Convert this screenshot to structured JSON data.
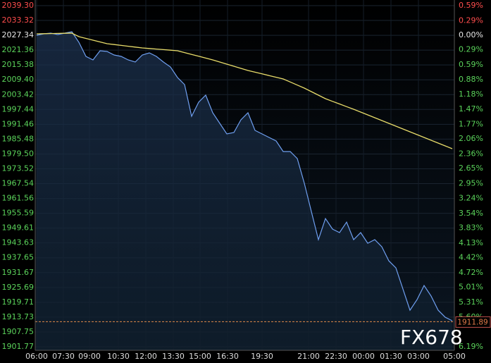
{
  "chart_data": {
    "type": "line",
    "watermark": "FX678",
    "xticks": [
      "06:00",
      "07:30",
      "09:00",
      "10:30",
      "12:00",
      "13:30",
      "15:00",
      "16:30",
      "19:30",
      "21:00",
      "22:30",
      "00:00",
      "01:30",
      "03:00",
      "05:00"
    ],
    "ylim": [
      1900.35,
      2041.57
    ],
    "yticks": [
      {
        "value": 2039.3,
        "label": "2039.30"
      },
      2033.32,
      2027.34,
      2021.36,
      2015.38,
      {
        "value": 2009.4,
        "label": "2009.40"
      },
      2003.42,
      1997.44,
      1991.46,
      1985.48,
      {
        "value": 1979.5,
        "label": "1979.50"
      },
      1973.52,
      1967.54,
      1961.56,
      1955.59,
      1949.61,
      1943.63,
      1937.65,
      1931.67,
      1925.69,
      1919.71,
      1913.73,
      1907.75,
      1901.77
    ],
    "y2lim": [
      -6.26,
      0.7
    ],
    "y2ticks": [
      {
        "value": 0.59,
        "label": "0.59%"
      },
      {
        "value": 0.29,
        "label": "0.29%"
      },
      {
        "value": 0,
        "label": "0.00%"
      },
      {
        "value": -0.29,
        "label": "0.29%"
      },
      {
        "value": -0.59,
        "label": "0.59%"
      },
      {
        "value": -0.88,
        "label": "0.88%"
      },
      {
        "value": -1.18,
        "label": "1.18%"
      },
      {
        "value": -1.47,
        "label": "1.47%"
      },
      {
        "value": -1.77,
        "label": "1.77%"
      },
      {
        "value": -2.06,
        "label": "2.06%"
      },
      {
        "value": -2.36,
        "label": "2.36%"
      },
      {
        "value": -2.65,
        "label": "2.65%"
      },
      {
        "value": -2.95,
        "label": "2.95%"
      },
      {
        "value": -3.24,
        "label": "3.24%"
      },
      {
        "value": -3.54,
        "label": "3.54%"
      },
      {
        "value": -3.83,
        "label": "3.83%"
      },
      {
        "value": -4.13,
        "label": "4.13%"
      },
      {
        "value": -4.42,
        "label": "4.42%"
      },
      {
        "value": -4.72,
        "label": "4.72%"
      },
      {
        "value": -5.01,
        "label": "5.01%"
      },
      {
        "value": -5.31,
        "label": "5.31%"
      },
      {
        "value": -5.6,
        "label": "5.60%"
      },
      {
        "value": -6.19,
        "label": "6.19%"
      }
    ],
    "grid": true,
    "last_price": 1911.89,
    "series": [
      {
        "color": "#6f9ff0",
        "values": [
          2027.36,
          2027.93,
          2028.22,
          2027.65,
          2028.22,
          2028.78,
          2024.52,
          2018.84,
          2017.42,
          2021.11,
          2020.83,
          2019.41,
          2018.84,
          2017.42,
          2016.56,
          2019.41,
          2020.26,
          2018.84,
          2016.56,
          2014.57,
          2010.31,
          2007.47,
          1994.68,
          2000.36,
          2003.21,
          1996.1,
          1991.84,
          1987.58,
          1988.14,
          1993.26,
          1996.1,
          1989.0,
          1987.58,
          1986.15,
          1984.73,
          1980.47,
          1980.47,
          1977.63,
          1967.68,
          1956.31,
          1944.95,
          1953.47,
          1949.21,
          1947.79,
          1952.05,
          1944.95,
          1947.79,
          1943.52,
          1944.95,
          1942.1,
          1936.42,
          1933.58,
          1925.05,
          1916.53,
          1920.79,
          1926.47,
          1922.21,
          1916.53,
          1913.68,
          1912.26
        ]
      },
      {
        "color": "#e8dc6a",
        "values": [
          2027.93,
          2027.99,
          2028.05,
          2028.1,
          2028.16,
          2028.22,
          2026.8,
          2026.08,
          2025.37,
          2024.66,
          2023.95,
          2023.61,
          2023.27,
          2022.93,
          2022.59,
          2022.25,
          2022.02,
          2021.79,
          2021.57,
          2021.34,
          2021.11,
          2020.37,
          2019.63,
          2018.89,
          2018.15,
          2017.42,
          2016.56,
          2015.71,
          2014.86,
          2014.01,
          2013.15,
          2012.47,
          2011.79,
          2011.11,
          2010.43,
          2009.74,
          2008.52,
          2007.28,
          2006.05,
          2004.63,
          2003.21,
          2001.79,
          2000.72,
          1999.65,
          1998.59,
          1997.52,
          1996.39,
          1995.25,
          1994.11,
          1992.98,
          1991.84,
          1990.7,
          1989.57,
          1988.43,
          1987.29,
          1986.15,
          1985.02,
          1983.88,
          1982.74,
          1981.61
        ]
      }
    ]
  }
}
